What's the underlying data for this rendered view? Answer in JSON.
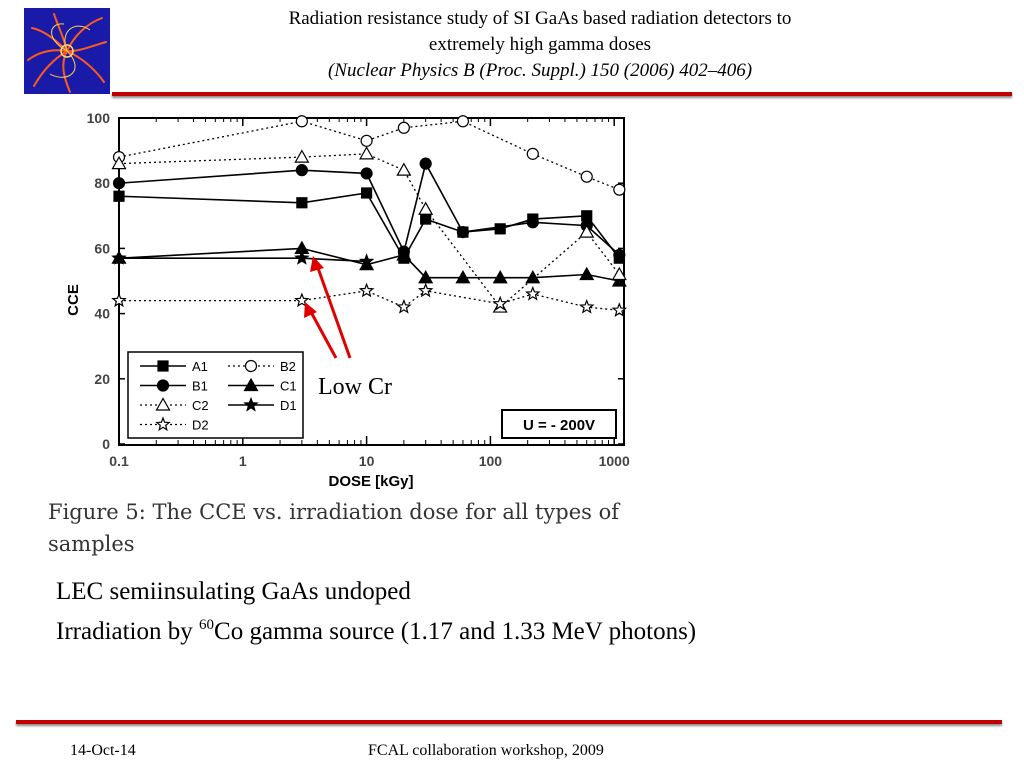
{
  "header": {
    "title_line1": "Radiation resistance study of SI GaAs based radiation detectors to",
    "title_line2": "extremely high gamma doses",
    "title_line3": "(Nuclear Physics B (Proc. Suppl.) 150 (2006) 402–406)"
  },
  "logo": {
    "icon": "cern-collision-event-logo",
    "bg_color": "#1a1aa8",
    "accent_color": "#ff5a1a"
  },
  "accent_color": "#c00000",
  "chart_data": {
    "type": "line",
    "xlabel": "DOSE  [kGy]",
    "ylabel": "CCE",
    "x_scale": "log",
    "xlim": [
      0.1,
      1200
    ],
    "ylim": [
      0,
      100
    ],
    "x_ticks": [
      0.1,
      1,
      10,
      100,
      1000
    ],
    "x_tick_labels": [
      "0.1",
      "1",
      "10",
      "100",
      "1000"
    ],
    "y_ticks": [
      0,
      20,
      40,
      60,
      80,
      100
    ],
    "y_tick_labels": [
      "0",
      "20",
      "40",
      "60",
      "80",
      "100"
    ],
    "grid": false,
    "legend_position": "bottom-left",
    "annotation_box": "U = - 200V",
    "series": [
      {
        "name": "A1",
        "style": "solid",
        "marker": "square",
        "filled": true,
        "x": [
          0.1,
          3,
          10,
          20,
          30,
          60,
          120,
          220,
          600,
          1100
        ],
        "y": [
          76,
          74,
          77,
          57,
          69,
          65,
          66,
          69,
          70,
          57
        ]
      },
      {
        "name": "B2",
        "style": "dotted",
        "marker": "circle",
        "filled": false,
        "x": [
          0.1,
          3,
          10,
          20,
          60,
          220,
          600,
          1100
        ],
        "y": [
          88,
          99,
          93,
          97,
          99,
          89,
          82,
          78
        ]
      },
      {
        "name": "B1",
        "style": "solid",
        "marker": "circle",
        "filled": true,
        "x": [
          0.1,
          3,
          10,
          20,
          30,
          60,
          220,
          600,
          1100
        ],
        "y": [
          80,
          84,
          83,
          59,
          86,
          65,
          68,
          67,
          58
        ]
      },
      {
        "name": "C1",
        "style": "solid",
        "marker": "triangle",
        "filled": true,
        "x": [
          0.1,
          3,
          10,
          20,
          30,
          60,
          120,
          220,
          600,
          1100
        ],
        "y": [
          57,
          60,
          55,
          58,
          51,
          51,
          51,
          51,
          52,
          50
        ]
      },
      {
        "name": "C2",
        "style": "dotted",
        "marker": "triangle",
        "filled": false,
        "x": [
          0.1,
          3,
          10,
          20,
          30,
          120,
          600,
          1100
        ],
        "y": [
          86,
          88,
          89,
          84,
          72,
          42,
          65,
          52
        ]
      },
      {
        "name": "D1",
        "style": "solid",
        "marker": "star",
        "filled": true,
        "x": [
          0.1,
          3,
          10
        ],
        "y": [
          57,
          57,
          56
        ]
      },
      {
        "name": "D2",
        "style": "dotted",
        "marker": "star",
        "filled": false,
        "x": [
          0.1,
          3,
          10,
          20,
          30,
          120,
          220,
          600,
          1100
        ],
        "y": [
          44,
          44,
          47,
          42,
          47,
          43,
          46,
          42,
          41
        ]
      }
    ]
  },
  "annotation": {
    "label": "Low Cr",
    "arrow_color": "#e00000"
  },
  "caption": "Figure 5: The CCE vs. irradiation dose for   all types of samples",
  "body": {
    "line1": "LEC semiinsulating GaAs undoped",
    "line2_pre": "Irradiation by ",
    "line2_sup": "60",
    "line2_post": "Co gamma source (1.17 and 1.33 MeV photons)"
  },
  "footer": {
    "date": "14-Oct-14",
    "event": "FCAL collaboration workshop, 2009"
  }
}
